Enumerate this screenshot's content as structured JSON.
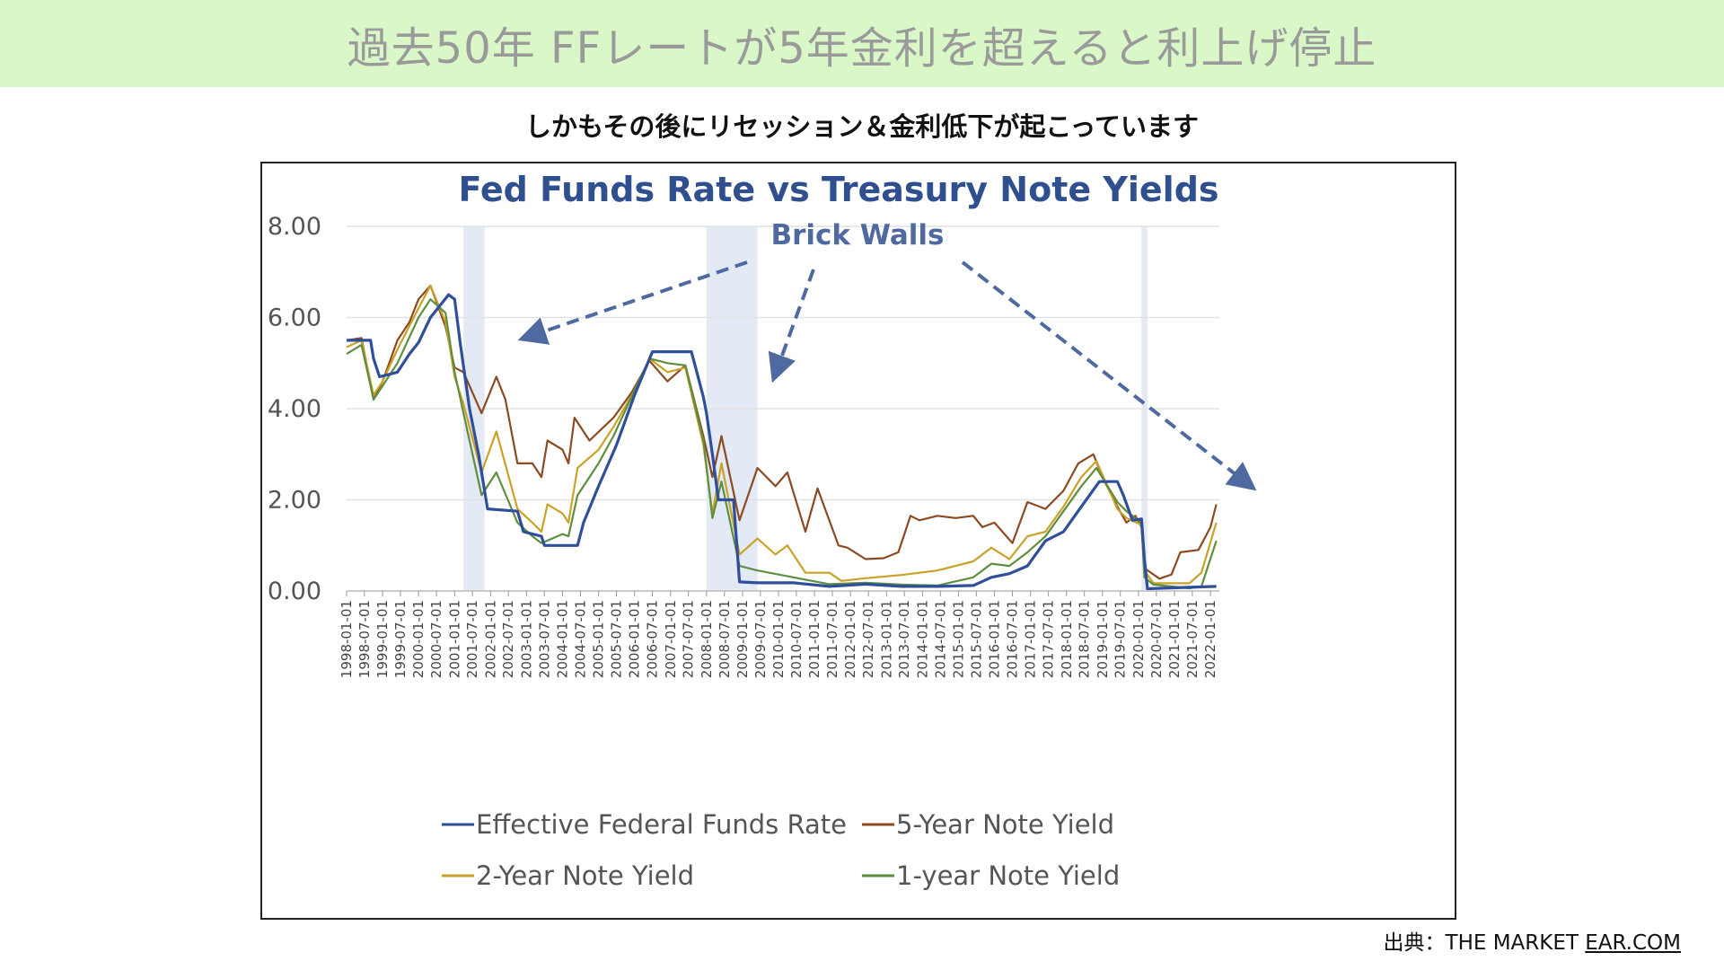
{
  "banner": {
    "title": "過去50年 FFレートが5年金利を超えると利上げ停止"
  },
  "subtitle": "しかもその後にリセッション＆金利低下が起こっています",
  "source": {
    "prefix": "出典：THE MARKET ",
    "link": "EAR.COM"
  },
  "colors": {
    "banner_bg": "#d9f7c7",
    "fed": "#2f4f9b",
    "five": "#8b4a22",
    "two": "#c9a227",
    "one": "#5f8f3e",
    "shade": "#e3eaf6",
    "title": "#2f4f8f",
    "annotation": "#4f6aa0"
  },
  "chart_data": {
    "type": "line",
    "title": "Fed Funds Rate vs Treasury Note Yields",
    "annotation": "Brick Walls",
    "ylim": [
      0,
      8
    ],
    "yticks": [
      "0.00",
      "2.00",
      "4.00",
      "6.00",
      "8.00"
    ],
    "xlim": [
      "1998-01-01",
      "2022-04-01"
    ],
    "xticks": [
      "1998-01-01",
      "1998-07-01",
      "1999-01-01",
      "1999-07-01",
      "2000-01-01",
      "2000-07-01",
      "2001-01-01",
      "2001-07-01",
      "2002-01-01",
      "2002-07-01",
      "2003-01-01",
      "2003-07-01",
      "2004-01-01",
      "2004-07-01",
      "2005-01-01",
      "2005-07-01",
      "2006-01-01",
      "2006-07-01",
      "2007-01-01",
      "2007-07-01",
      "2008-01-01",
      "2008-07-01",
      "2009-01-01",
      "2009-07-01",
      "2010-01-01",
      "2010-07-01",
      "2011-01-01",
      "2011-07-01",
      "2012-01-01",
      "2012-07-01",
      "2013-01-01",
      "2013-07-01",
      "2014-01-01",
      "2014-07-01",
      "2015-01-01",
      "2015-07-01",
      "2016-01-01",
      "2016-07-01",
      "2017-01-01",
      "2017-07-01",
      "2018-01-01",
      "2018-07-01",
      "2019-01-01",
      "2019-07-01",
      "2020-01-01",
      "2020-07-01",
      "2021-01-01",
      "2021-07-01",
      "2022-01-01"
    ],
    "shaded_periods": [
      [
        "2001-04-01",
        "2001-11-01"
      ],
      [
        "2008-01-01",
        "2009-06-01"
      ],
      [
        "2020-02-01",
        "2020-04-01"
      ]
    ],
    "legend": "bottom",
    "series": [
      {
        "name": "Effective Federal Funds Rate",
        "color": "#2f4f9b",
        "x": [
          "1998-01-01",
          "1998-06-01",
          "1998-09-01",
          "1998-10-01",
          "1998-12-01",
          "1999-06-01",
          "1999-10-01",
          "2000-01-01",
          "2000-05-01",
          "2000-11-01",
          "2001-01-01",
          "2001-03-01",
          "2001-06-01",
          "2001-09-01",
          "2001-12-01",
          "2002-10-01",
          "2002-12-01",
          "2003-06-01",
          "2003-07-01",
          "2004-06-01",
          "2004-08-01",
          "2005-01-01",
          "2005-07-01",
          "2006-01-01",
          "2006-07-01",
          "2007-08-01",
          "2007-09-01",
          "2007-12-01",
          "2008-01-01",
          "2008-03-01",
          "2008-05-01",
          "2008-10-01",
          "2008-12-01",
          "2009-06-01",
          "2010-06-01",
          "2011-06-01",
          "2012-06-01",
          "2013-06-01",
          "2014-06-01",
          "2015-06-01",
          "2015-12-01",
          "2016-06-01",
          "2016-12-01",
          "2017-06-01",
          "2017-12-01",
          "2018-06-01",
          "2018-12-01",
          "2019-06-01",
          "2019-08-01",
          "2019-11-01",
          "2020-02-01",
          "2020-03-01",
          "2020-04-01",
          "2021-06-01",
          "2022-03-01"
        ],
        "values": [
          5.5,
          5.5,
          5.5,
          5.1,
          4.7,
          4.8,
          5.2,
          5.45,
          6.0,
          6.5,
          6.4,
          5.4,
          4.0,
          3.0,
          1.8,
          1.75,
          1.3,
          1.2,
          1.0,
          1.0,
          1.5,
          2.3,
          3.2,
          4.3,
          5.25,
          5.25,
          5.0,
          4.25,
          3.9,
          3.0,
          2.0,
          2.0,
          0.2,
          0.18,
          0.18,
          0.1,
          0.15,
          0.1,
          0.1,
          0.12,
          0.3,
          0.38,
          0.55,
          1.1,
          1.3,
          1.85,
          2.4,
          2.4,
          2.1,
          1.55,
          1.58,
          0.7,
          0.05,
          0.08,
          0.1
        ]
      },
      {
        "name": "5-Year Note Yield",
        "color": "#8b4a22",
        "x": [
          "1998-01-01",
          "1998-06-01",
          "1998-10-01",
          "1999-01-01",
          "1999-06-01",
          "1999-10-01",
          "2000-01-01",
          "2000-05-01",
          "2000-10-01",
          "2001-01-01",
          "2001-04-01",
          "2001-10-01",
          "2002-03-01",
          "2002-06-01",
          "2002-10-01",
          "2003-03-01",
          "2003-06-01",
          "2003-08-01",
          "2004-01-01",
          "2004-03-01",
          "2004-05-01",
          "2004-10-01",
          "2005-06-01",
          "2005-12-01",
          "2006-06-01",
          "2006-12-01",
          "2007-06-01",
          "2007-12-01",
          "2008-03-01",
          "2008-06-01",
          "2008-12-01",
          "2009-06-01",
          "2009-12-01",
          "2010-04-01",
          "2010-10-01",
          "2011-02-01",
          "2011-09-01",
          "2011-12-01",
          "2012-06-01",
          "2012-12-01",
          "2013-05-01",
          "2013-09-01",
          "2013-12-01",
          "2014-06-01",
          "2014-12-01",
          "2015-06-01",
          "2015-09-01",
          "2016-01-01",
          "2016-07-01",
          "2016-12-01",
          "2017-06-01",
          "2017-12-01",
          "2018-05-01",
          "2018-10-01",
          "2019-01-01",
          "2019-06-01",
          "2019-09-01",
          "2019-12-01",
          "2020-02-01",
          "2020-03-01",
          "2020-08-01",
          "2020-12-01",
          "2021-03-01",
          "2021-09-01",
          "2022-01-01",
          "2022-03-01"
        ],
        "values": [
          5.5,
          5.55,
          4.2,
          4.6,
          5.5,
          5.9,
          6.4,
          6.7,
          5.8,
          4.9,
          4.8,
          3.9,
          4.7,
          4.2,
          2.8,
          2.8,
          2.5,
          3.3,
          3.1,
          2.8,
          3.8,
          3.3,
          3.8,
          4.35,
          5.05,
          4.6,
          4.95,
          3.4,
          2.5,
          3.4,
          1.55,
          2.7,
          2.3,
          2.6,
          1.3,
          2.25,
          1.0,
          0.95,
          0.7,
          0.72,
          0.85,
          1.65,
          1.55,
          1.65,
          1.6,
          1.65,
          1.4,
          1.5,
          1.05,
          1.95,
          1.8,
          2.2,
          2.8,
          3.0,
          2.5,
          1.85,
          1.5,
          1.65,
          1.4,
          0.5,
          0.27,
          0.36,
          0.85,
          0.9,
          1.4,
          1.9
        ]
      },
      {
        "name": "2-Year Note Yield",
        "color": "#c9a227",
        "x": [
          "1998-01-01",
          "1998-06-01",
          "1998-10-01",
          "1999-01-01",
          "1999-06-01",
          "2000-01-01",
          "2000-05-01",
          "2000-10-01",
          "2001-01-01",
          "2001-04-01",
          "2001-10-01",
          "2002-03-01",
          "2002-10-01",
          "2003-03-01",
          "2003-06-01",
          "2003-08-01",
          "2004-01-01",
          "2004-03-01",
          "2004-06-01",
          "2005-01-01",
          "2005-06-01",
          "2006-01-01",
          "2006-06-01",
          "2006-12-01",
          "2007-06-01",
          "2007-12-01",
          "2008-03-01",
          "2008-06-01",
          "2008-12-01",
          "2009-06-01",
          "2009-12-01",
          "2010-04-01",
          "2010-10-01",
          "2011-06-01",
          "2011-10-01",
          "2012-06-01",
          "2013-06-01",
          "2014-06-01",
          "2015-06-01",
          "2015-12-01",
          "2016-06-01",
          "2016-12-01",
          "2017-06-01",
          "2017-12-01",
          "2018-06-01",
          "2018-11-01",
          "2019-06-01",
          "2019-09-01",
          "2020-02-01",
          "2020-03-01",
          "2020-06-01",
          "2021-06-01",
          "2021-10-01",
          "2022-03-01"
        ],
        "values": [
          5.35,
          5.5,
          4.3,
          4.6,
          5.3,
          6.2,
          6.7,
          5.9,
          4.7,
          4.1,
          2.6,
          3.5,
          1.8,
          1.5,
          1.3,
          1.9,
          1.7,
          1.5,
          2.7,
          3.1,
          3.6,
          4.4,
          5.1,
          4.8,
          4.9,
          3.2,
          1.7,
          2.8,
          0.8,
          1.15,
          0.8,
          1.0,
          0.4,
          0.4,
          0.22,
          0.28,
          0.35,
          0.45,
          0.65,
          0.95,
          0.7,
          1.2,
          1.3,
          1.85,
          2.5,
          2.85,
          1.8,
          1.6,
          1.45,
          0.45,
          0.17,
          0.17,
          0.4,
          1.5
        ]
      },
      {
        "name": "1-year Note Yield",
        "color": "#5f8f3e",
        "x": [
          "1998-01-01",
          "1998-06-01",
          "1998-10-01",
          "1999-01-01",
          "1999-06-01",
          "2000-01-01",
          "2000-05-01",
          "2000-10-01",
          "2001-01-01",
          "2001-04-01",
          "2001-10-01",
          "2002-03-01",
          "2002-10-01",
          "2003-03-01",
          "2003-06-01",
          "2004-01-01",
          "2004-03-01",
          "2004-06-01",
          "2005-01-01",
          "2005-06-01",
          "2006-01-01",
          "2006-06-01",
          "2006-12-01",
          "2007-06-01",
          "2007-12-01",
          "2008-03-01",
          "2008-06-01",
          "2008-12-01",
          "2009-06-01",
          "2010-06-01",
          "2011-06-01",
          "2012-06-01",
          "2013-06-01",
          "2014-06-01",
          "2015-06-01",
          "2015-12-01",
          "2016-06-01",
          "2016-12-01",
          "2017-06-01",
          "2017-12-01",
          "2018-06-01",
          "2018-11-01",
          "2019-06-01",
          "2019-09-01",
          "2020-02-01",
          "2020-03-01",
          "2020-06-01",
          "2021-06-01",
          "2021-10-01",
          "2022-03-01"
        ],
        "values": [
          5.2,
          5.4,
          4.2,
          4.5,
          5.0,
          6.0,
          6.4,
          6.1,
          4.8,
          3.9,
          2.1,
          2.6,
          1.5,
          1.2,
          1.05,
          1.25,
          1.2,
          2.1,
          2.8,
          3.4,
          4.4,
          5.1,
          5.0,
          4.95,
          3.3,
          1.6,
          2.4,
          0.55,
          0.45,
          0.3,
          0.15,
          0.18,
          0.14,
          0.12,
          0.3,
          0.6,
          0.55,
          0.85,
          1.2,
          1.75,
          2.3,
          2.7,
          1.95,
          1.75,
          1.5,
          0.3,
          0.14,
          0.06,
          0.1,
          1.1
        ]
      }
    ]
  }
}
